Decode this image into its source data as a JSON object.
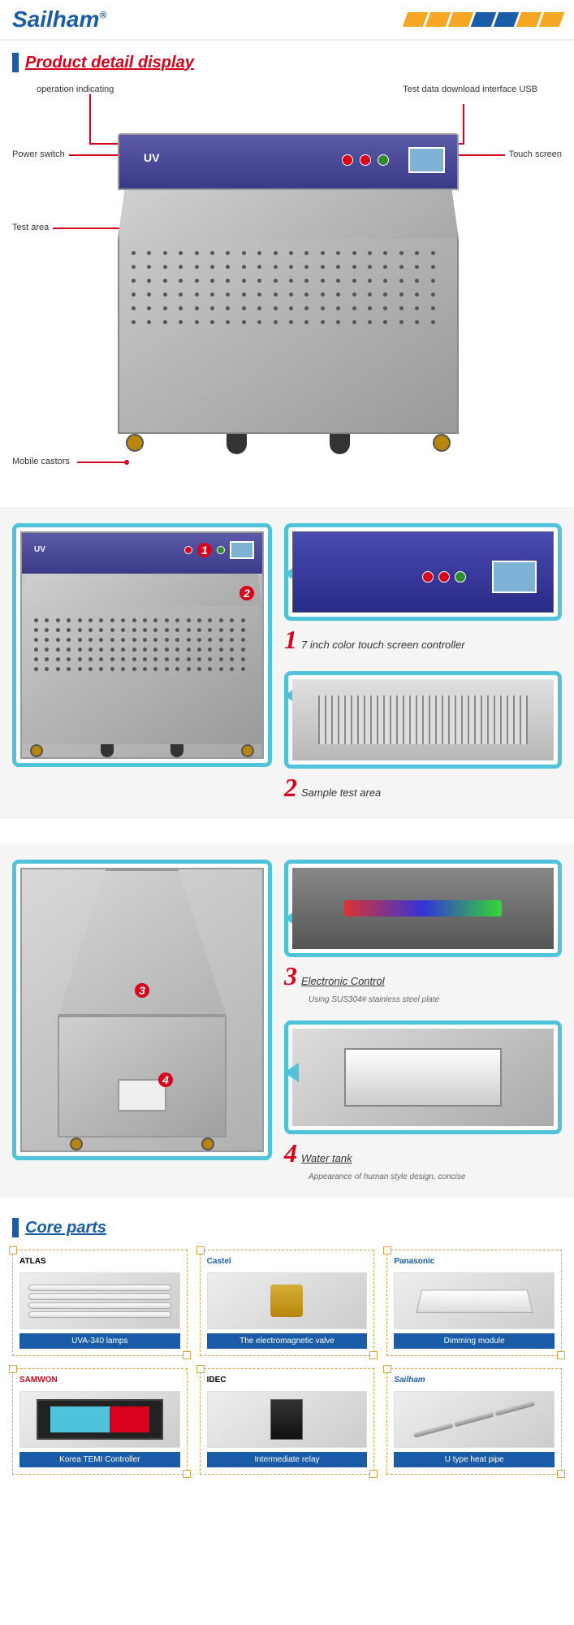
{
  "brand": "Sailham",
  "brand_symbol": "®",
  "section1_title": "Product detail display",
  "callouts": {
    "operation": "operation indicating",
    "testdata": "Test data download interface USB",
    "power": "Power switch",
    "touchscreen": "Touch screen",
    "testarea": "Test area",
    "mobile": "Mobile castors"
  },
  "uv_label": "UV",
  "detail1": {
    "num": "1",
    "text": "7 inch color touch screen controller"
  },
  "detail2": {
    "num": "2",
    "text": "Sample test area"
  },
  "detail3": {
    "num": "3",
    "text": "Electronic Control",
    "sub": "Using SUS304# stainless steel plate"
  },
  "detail4": {
    "num": "4",
    "text": "Water tank",
    "sub": "Appearance of human style design, concise"
  },
  "core_title": "Core parts",
  "parts": [
    {
      "brand": "ATLAS",
      "label": "UVA-340 lamps"
    },
    {
      "brand": "Castel",
      "label": "The electromagnetic valve"
    },
    {
      "brand": "Panasonic",
      "label": "Dimming module"
    },
    {
      "brand": "SAMWON",
      "label": "Korea TEMI Controller"
    },
    {
      "brand": "IDEC",
      "label": "Intermediate relay"
    },
    {
      "brand": "Sailham",
      "label": "U type heat pipe"
    }
  ],
  "colors": {
    "brand_blue": "#1a5ca8",
    "accent_red": "#d9001b",
    "frame_cyan": "#4fc3d9",
    "orange": "#f5a623"
  }
}
